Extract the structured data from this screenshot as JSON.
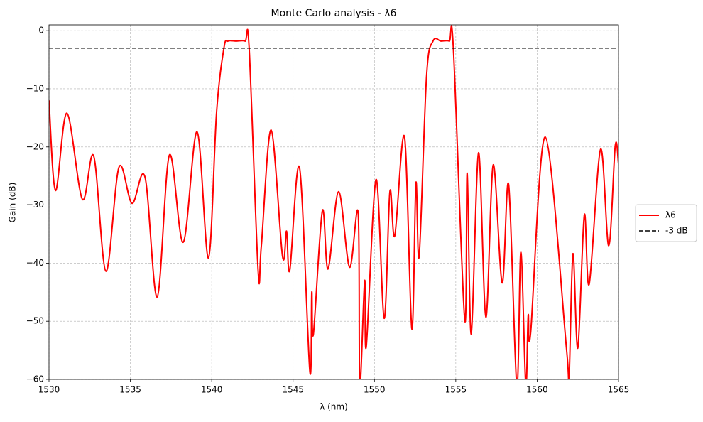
{
  "chart_data": {
    "type": "line",
    "title": "Monte Carlo analysis - λ6",
    "xlabel": "λ (nm)",
    "ylabel": "Gain (dB)",
    "xlim": [
      1530,
      1565
    ],
    "ylim": [
      -60,
      1
    ],
    "xticks": [
      1530,
      1535,
      1540,
      1545,
      1550,
      1555,
      1560,
      1565
    ],
    "yticks": [
      {
        "value": -60,
        "label": "−60"
      },
      {
        "value": -50,
        "label": "−50"
      },
      {
        "value": -40,
        "label": "−40"
      },
      {
        "value": -30,
        "label": "−30"
      },
      {
        "value": -20,
        "label": "−20"
      },
      {
        "value": -10,
        "label": "−10"
      },
      0
    ],
    "grid": true,
    "legend": "right",
    "series": [
      {
        "name": "λ6",
        "color": "#ff0000",
        "style": "solid",
        "x": [
          1530,
          1530.4,
          1531.1,
          1532.05,
          1532.75,
          1533.5,
          1534.3,
          1535.1,
          1535.9,
          1536.65,
          1537.4,
          1538.25,
          1539.1,
          1539.8,
          1540.3,
          1540.75,
          1541.0,
          1541.5,
          1542.05,
          1542.3,
          1542.85,
          1543.05,
          1543.65,
          1544.35,
          1544.6,
          1544.8,
          1545.4,
          1546.03,
          1546.15,
          1546.25,
          1546.8,
          1547.15,
          1547.8,
          1548.47,
          1549.0,
          1549.1,
          1549.4,
          1549.5,
          1550.1,
          1550.6,
          1550.95,
          1551.25,
          1551.85,
          1552.3,
          1552.55,
          1552.75,
          1553.2,
          1553.6,
          1554.1,
          1554.6,
          1554.85,
          1555.55,
          1555.7,
          1555.95,
          1556.4,
          1556.85,
          1557.3,
          1557.85,
          1558.25,
          1558.75,
          1559.0,
          1559.3,
          1559.45,
          1559.6,
          1560.5,
          1561.8,
          1561.95,
          1562.2,
          1562.5,
          1562.9,
          1563.2,
          1563.9,
          1564.4,
          1564.8,
          1565
        ],
        "values": [
          -12,
          -27.5,
          -14.2,
          -29,
          -21.6,
          -41.4,
          -23.5,
          -29.7,
          -25.2,
          -45.8,
          -21.4,
          -36.4,
          -17.4,
          -39.1,
          -14,
          -3,
          -1.8,
          -1.8,
          -1.8,
          -3,
          -41.2,
          -37,
          -17.1,
          -38.8,
          -34.5,
          -41.2,
          -23.6,
          -58.6,
          -45,
          -52.2,
          -31,
          -41,
          -27.7,
          -40.7,
          -31.4,
          -61,
          -43,
          -54.3,
          -25.6,
          -49.5,
          -27.7,
          -35.3,
          -18.3,
          -51.3,
          -26.2,
          -38.8,
          -8,
          -1.8,
          -1.8,
          -1.8,
          -3,
          -49.8,
          -24.5,
          -52.2,
          -21,
          -49.3,
          -23.1,
          -43.4,
          -26.5,
          -61,
          -38.1,
          -61,
          -49,
          -52,
          -18.3,
          -54.6,
          -61,
          -38.4,
          -54.6,
          -31.7,
          -43.6,
          -20.4,
          -37,
          -19.8,
          -22.9
        ]
      },
      {
        "name": "-3 dB",
        "color": "#000000",
        "style": "dashed",
        "x": [
          1530,
          1565
        ],
        "values": [
          -3,
          -3
        ]
      }
    ]
  }
}
